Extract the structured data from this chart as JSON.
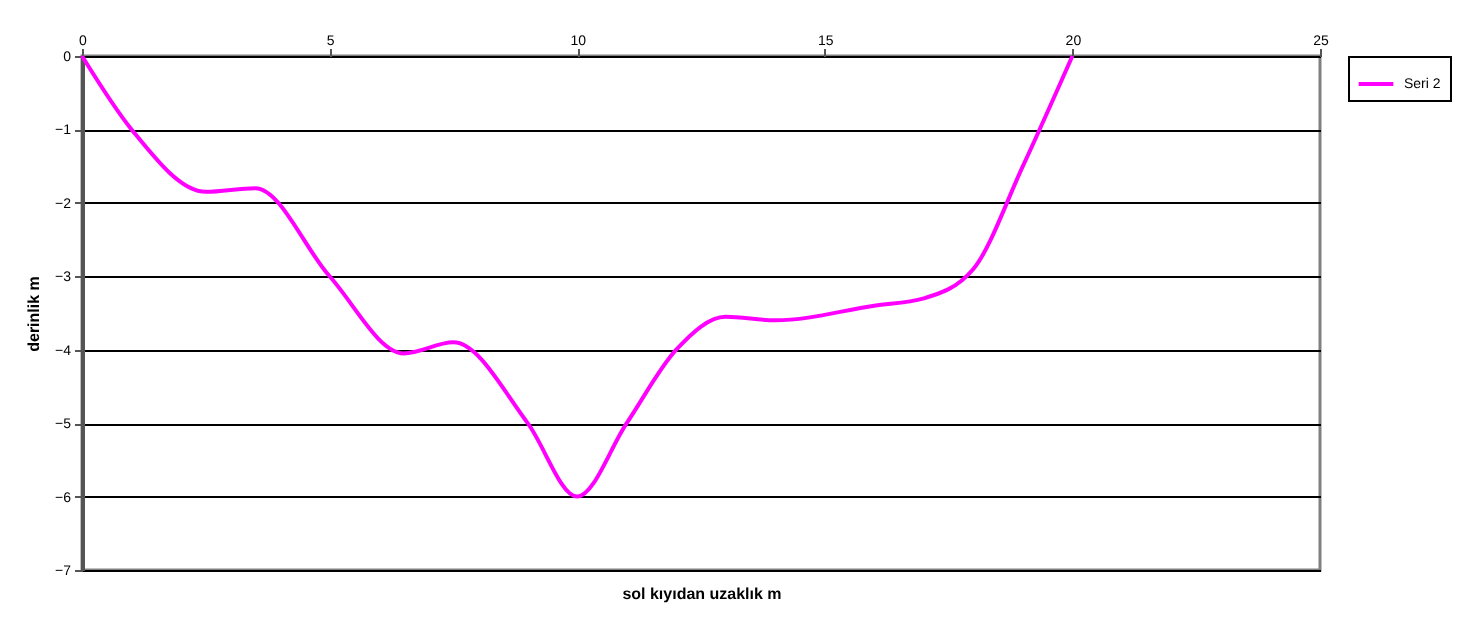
{
  "chart_data": {
    "type": "line",
    "xlabel": "sol kıyıdan uzaklık m",
    "ylabel": "derinlik m",
    "x": [
      0,
      1,
      2.5,
      3.5,
      5,
      6.5,
      7.5,
      9,
      10,
      11,
      12,
      13,
      14,
      16,
      17,
      18,
      19,
      20
    ],
    "series": [
      {
        "name": "Seri 2",
        "color": "#ff00ff",
        "values": [
          0,
          -1,
          -1.85,
          -1.8,
          -3,
          -4.05,
          -3.9,
          -5,
          -6,
          -5,
          -4,
          -3.55,
          -3.6,
          -3.4,
          -3.3,
          -2.9,
          -1.5,
          0
        ]
      }
    ],
    "xlim": [
      0,
      25
    ],
    "xticks": [
      0,
      5,
      10,
      15,
      20,
      25
    ],
    "ylim": [
      -7,
      0
    ],
    "yticks": [
      -7,
      -6,
      -5,
      -4,
      -3,
      -2,
      -1,
      0
    ],
    "grid": "y",
    "legend": "right",
    "marker": "none",
    "line_style": "solid"
  }
}
